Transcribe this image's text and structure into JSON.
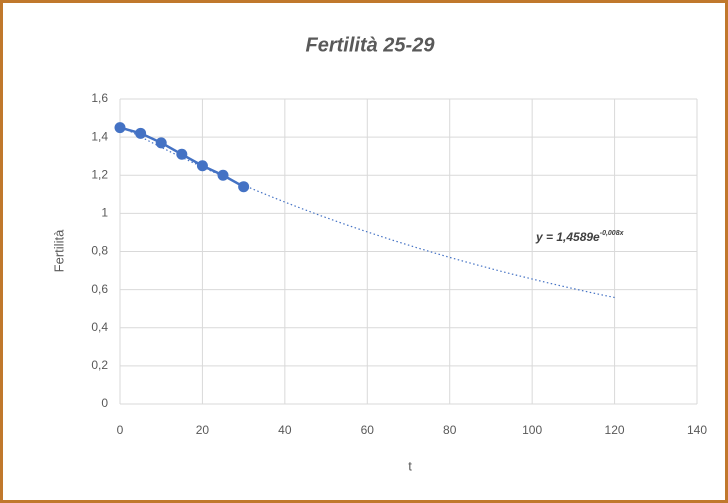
{
  "chart_data": {
    "type": "scatter-line",
    "title": "Fertilità 25-29",
    "x_label": "t",
    "y_label": "Fertilità",
    "series": [
      {
        "name": "Fertilità",
        "color": "#4472c4",
        "x": [
          0,
          5,
          10,
          15,
          20,
          25,
          30
        ],
        "values": [
          1.45,
          1.42,
          1.37,
          1.31,
          1.25,
          1.2,
          1.14
        ]
      }
    ],
    "trendline": {
      "label": "y = 1,4589e",
      "label_exponent": "-0,008x",
      "a": 1.4589,
      "k": -0.008,
      "xlim": [
        0,
        120
      ],
      "color": "#4472c4"
    },
    "xlim": [
      0,
      140
    ],
    "xticks": [
      0,
      20,
      40,
      60,
      80,
      100,
      120,
      140
    ],
    "ylim": [
      0,
      1.6
    ],
    "yticks": [
      0,
      {
        "value": 0.2,
        "label": "0,2"
      },
      {
        "value": 0.4,
        "label": "0,4"
      },
      {
        "value": 0.6,
        "label": "0,6"
      },
      {
        "value": 0.8,
        "label": "0,8"
      },
      1,
      {
        "value": 1.2,
        "label": "1,2"
      },
      {
        "value": 1.4,
        "label": "1,4"
      },
      {
        "value": 1.6,
        "label": "1,6"
      }
    ],
    "grid": true
  }
}
